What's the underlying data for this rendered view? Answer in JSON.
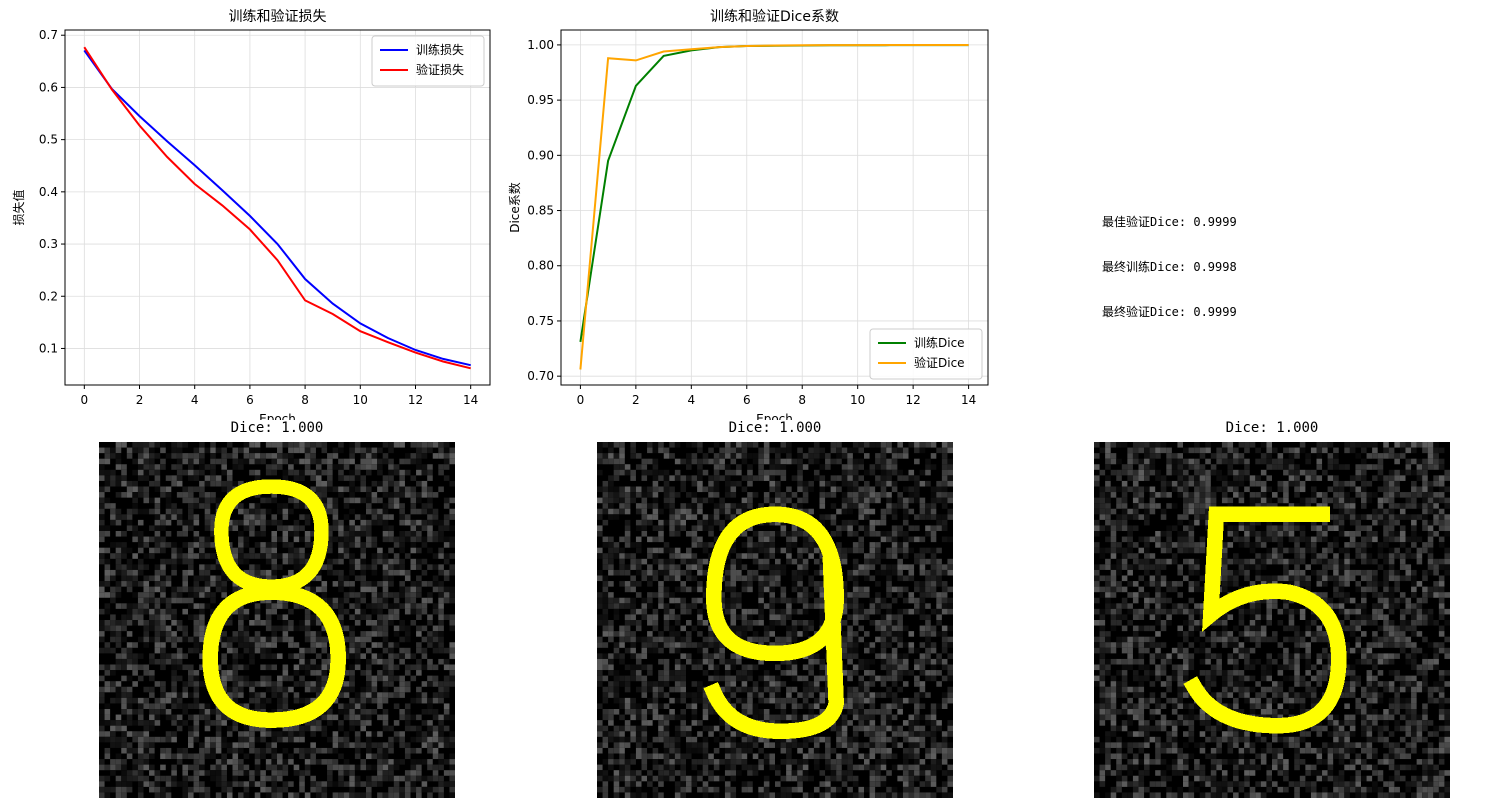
{
  "chart_data": [
    {
      "type": "line",
      "title": "训练和验证损失",
      "xlabel": "Epoch",
      "ylabel": "损失值",
      "x": [
        0,
        1,
        2,
        3,
        4,
        5,
        6,
        7,
        8,
        9,
        10,
        11,
        12,
        13,
        14
      ],
      "xlim": [
        -0.7,
        14.7
      ],
      "ylim": [
        0.03,
        0.71
      ],
      "xticks": [
        0,
        2,
        4,
        6,
        8,
        10,
        12,
        14
      ],
      "yticks": [
        0.1,
        0.2,
        0.3,
        0.4,
        0.5,
        0.6,
        0.7
      ],
      "ytick_labels": [
        "0.1",
        "0.2",
        "0.3",
        "0.4",
        "0.5",
        "0.6",
        "0.7"
      ],
      "grid": true,
      "legend_position": "top-right",
      "series": [
        {
          "name": "训练损失",
          "color": "#0000ff",
          "values": [
            0.671,
            0.597,
            0.545,
            0.497,
            0.451,
            0.403,
            0.354,
            0.3,
            0.233,
            0.186,
            0.148,
            0.12,
            0.097,
            0.08,
            0.068
          ]
        },
        {
          "name": "验证损失",
          "color": "#ff0000",
          "values": [
            0.677,
            0.596,
            0.527,
            0.467,
            0.415,
            0.374,
            0.328,
            0.269,
            0.192,
            0.166,
            0.133,
            0.112,
            0.092,
            0.075,
            0.062
          ]
        }
      ]
    },
    {
      "type": "line",
      "title": "训练和验证Dice系数",
      "xlabel": "Epoch",
      "ylabel": "Dice系数",
      "x": [
        0,
        1,
        2,
        3,
        4,
        5,
        6,
        7,
        8,
        9,
        10,
        11,
        12,
        13,
        14
      ],
      "xlim": [
        -0.7,
        14.7
      ],
      "ylim": [
        0.692,
        1.0135
      ],
      "xticks": [
        0,
        2,
        4,
        6,
        8,
        10,
        12,
        14
      ],
      "yticks": [
        0.7,
        0.75,
        0.8,
        0.85,
        0.9,
        0.95,
        1.0
      ],
      "ytick_labels": [
        "0.70",
        "0.75",
        "0.80",
        "0.85",
        "0.90",
        "0.95",
        "1.00"
      ],
      "grid": true,
      "legend_position": "bottom-right",
      "series": [
        {
          "name": "训练Dice",
          "color": "#008000",
          "values": [
            0.731,
            0.895,
            0.963,
            0.99,
            0.995,
            0.998,
            0.999,
            0.9993,
            0.9995,
            0.9996,
            0.9997,
            0.9997,
            0.9998,
            0.9998,
            0.9998
          ]
        },
        {
          "name": "验证Dice",
          "color": "#ffa500",
          "values": [
            0.706,
            0.988,
            0.986,
            0.994,
            0.996,
            0.998,
            0.999,
            0.9995,
            0.9997,
            0.9998,
            0.9998,
            0.9999,
            0.9999,
            0.9999,
            0.9999
          ]
        }
      ]
    }
  ],
  "stats": {
    "lines": [
      "最佳验证Dice: 0.9999",
      "最终训练Dice: 0.9998",
      "最终验证Dice: 0.9999"
    ]
  },
  "samples": [
    {
      "title": "Dice: 1.000",
      "digit": "8"
    },
    {
      "title": "Dice: 1.000",
      "digit": "9"
    },
    {
      "title": "Dice: 1.000",
      "digit": "5"
    }
  ],
  "colors": {
    "mask": "#ffff00",
    "background": "#000000"
  }
}
